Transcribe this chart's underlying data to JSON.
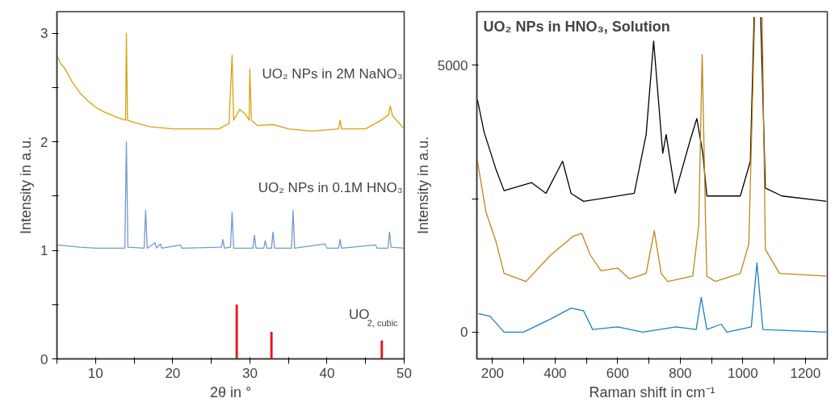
{
  "chart_data": [
    {
      "type": "line",
      "xlabel": "2θ in °",
      "ylabel": "Intensity in a.u.",
      "xlim": [
        5,
        50
      ],
      "ylim": [
        0,
        3.2
      ],
      "xticks": [
        {
          "value": 5,
          "label": null
        },
        10,
        {
          "value": 15,
          "label": null
        },
        20,
        {
          "value": 25,
          "label": null
        },
        30,
        {
          "value": 35,
          "label": null
        },
        40,
        {
          "value": 45,
          "label": null
        },
        50
      ],
      "yticks": [
        0,
        {
          "value": 0.5,
          "label": null
        },
        1,
        {
          "value": 1.5,
          "label": null
        },
        2,
        {
          "value": 2.5,
          "label": null
        },
        3
      ],
      "grid": false,
      "series": [
        {
          "name": "UO₂ NPs in 2M NaNO₃",
          "color": "#d6a40c",
          "x": [
            5,
            5.5,
            6,
            7,
            8,
            9,
            10,
            11,
            12,
            13,
            13.9,
            14.0,
            14.15,
            15,
            17,
            20,
            23,
            26,
            27.3,
            27.7,
            27.9,
            28.7,
            29.5,
            29.9,
            30.0,
            30.2,
            31,
            33,
            35,
            38,
            41.5,
            41.7,
            41.9,
            45,
            47,
            48,
            48.2,
            48.5,
            50
          ],
          "values": [
            2.8,
            2.72,
            2.68,
            2.55,
            2.45,
            2.38,
            2.32,
            2.28,
            2.25,
            2.22,
            2.2,
            3.0,
            2.2,
            2.18,
            2.14,
            2.12,
            2.12,
            2.12,
            2.17,
            2.8,
            2.2,
            2.3,
            2.25,
            2.2,
            2.67,
            2.2,
            2.15,
            2.16,
            2.12,
            2.1,
            2.12,
            2.2,
            2.12,
            2.12,
            2.2,
            2.25,
            2.33,
            2.24,
            2.12
          ]
        },
        {
          "name": "UO₂ NPs in 0.1M HNO₃",
          "color": "#6f9ad0",
          "x": [
            5,
            8,
            10,
            13.8,
            14.0,
            14.2,
            16.3,
            16.5,
            16.7,
            17.7,
            17.9,
            18.4,
            18.6,
            21,
            21.2,
            26.3,
            26.5,
            26.7,
            27.5,
            27.7,
            27.9,
            30.4,
            30.6,
            30.8,
            31.8,
            32,
            32.2,
            32.8,
            33.0,
            33.2,
            35.4,
            35.6,
            35.8,
            39.7,
            40,
            41.5,
            41.7,
            41.9,
            46.3,
            46.5,
            47.9,
            48.1,
            48.3,
            50
          ],
          "values": [
            1.05,
            1.03,
            1.02,
            1.02,
            2.0,
            1.03,
            1.02,
            1.37,
            1.02,
            1.07,
            1.02,
            1.06,
            1.02,
            1.05,
            1.02,
            1.03,
            1.1,
            1.02,
            1.03,
            1.35,
            1.02,
            1.02,
            1.14,
            1.02,
            1.02,
            1.09,
            1.02,
            1.02,
            1.17,
            1.02,
            1.02,
            1.37,
            1.02,
            1.06,
            1.02,
            1.02,
            1.1,
            1.02,
            1.05,
            1.02,
            1.02,
            1.17,
            1.03,
            1.02
          ]
        },
        {
          "name": "UO$_{2, cubic}$",
          "type": "bar",
          "color": "#e8141b",
          "x": [
            28.3,
            32.8,
            47.1
          ],
          "values": [
            0.5,
            0.25,
            0.17
          ]
        }
      ]
    },
    {
      "type": "line",
      "title": "UO₂ NPs in HNO₃, Solution",
      "xlabel": "Raman shift in cm⁻¹",
      "ylabel": "Intensity in a.u.",
      "xlim": [
        150,
        1270
      ],
      "ylim": [
        -500,
        6000
      ],
      "xticks": [
        200,
        {
          "value": 300,
          "label": null
        },
        400,
        {
          "value": 500,
          "label": null
        },
        600,
        {
          "value": 700,
          "label": null
        },
        800,
        {
          "value": 900,
          "label": null
        },
        1000,
        {
          "value": 1100,
          "label": null
        },
        1200
      ],
      "yticks": [
        0,
        {
          "value": 2500,
          "label": null
        },
        5000
      ],
      "grid": false,
      "series": [
        {
          "color": "#000000",
          "x": [
            152,
            173,
            211,
            237,
            325,
            371,
            424,
            451,
            491,
            653,
            691,
            715,
            744,
            755,
            784,
            832,
            853,
            872,
            885,
            992,
            1024,
            1036,
            1048,
            1057,
            1072,
            1125,
            1267
          ],
          "values": [
            4350,
            3750,
            3050,
            2650,
            2800,
            2600,
            3200,
            2600,
            2450,
            2600,
            3700,
            5450,
            3350,
            3700,
            2600,
            3600,
            4000,
            3350,
            2550,
            2550,
            3200,
            5900,
            null,
            5900,
            2700,
            2550,
            2450
          ]
        },
        {
          "color": "#c08518",
          "x": [
            152,
            179,
            211,
            237,
            307,
            387,
            459,
            485,
            512,
            547,
            600,
            637,
            691,
            717,
            739,
            760,
            840,
            859,
            870,
            881,
            885,
            912,
            992,
            1019,
            1038,
            1048,
            1062,
            1072,
            1117,
            1267
          ],
          "values": [
            3200,
            2250,
            1700,
            1100,
            950,
            1450,
            1800,
            1850,
            1450,
            1150,
            1200,
            1000,
            1100,
            1900,
            1100,
            950,
            1050,
            2000,
            5200,
            2000,
            1050,
            950,
            1100,
            1650,
            5900,
            null,
            5900,
            1550,
            1100,
            1050
          ]
        },
        {
          "color": "#1f7fc4",
          "x": [
            155,
            192,
            237,
            299,
            387,
            451,
            491,
            520,
            600,
            680,
            787,
            851,
            867,
            885,
            931,
            949,
            1027,
            1045,
            1064,
            1267
          ],
          "values": [
            350,
            300,
            0,
            0,
            250,
            450,
            400,
            50,
            100,
            0,
            100,
            50,
            650,
            50,
            150,
            0,
            100,
            1300,
            50,
            0
          ]
        }
      ]
    }
  ]
}
